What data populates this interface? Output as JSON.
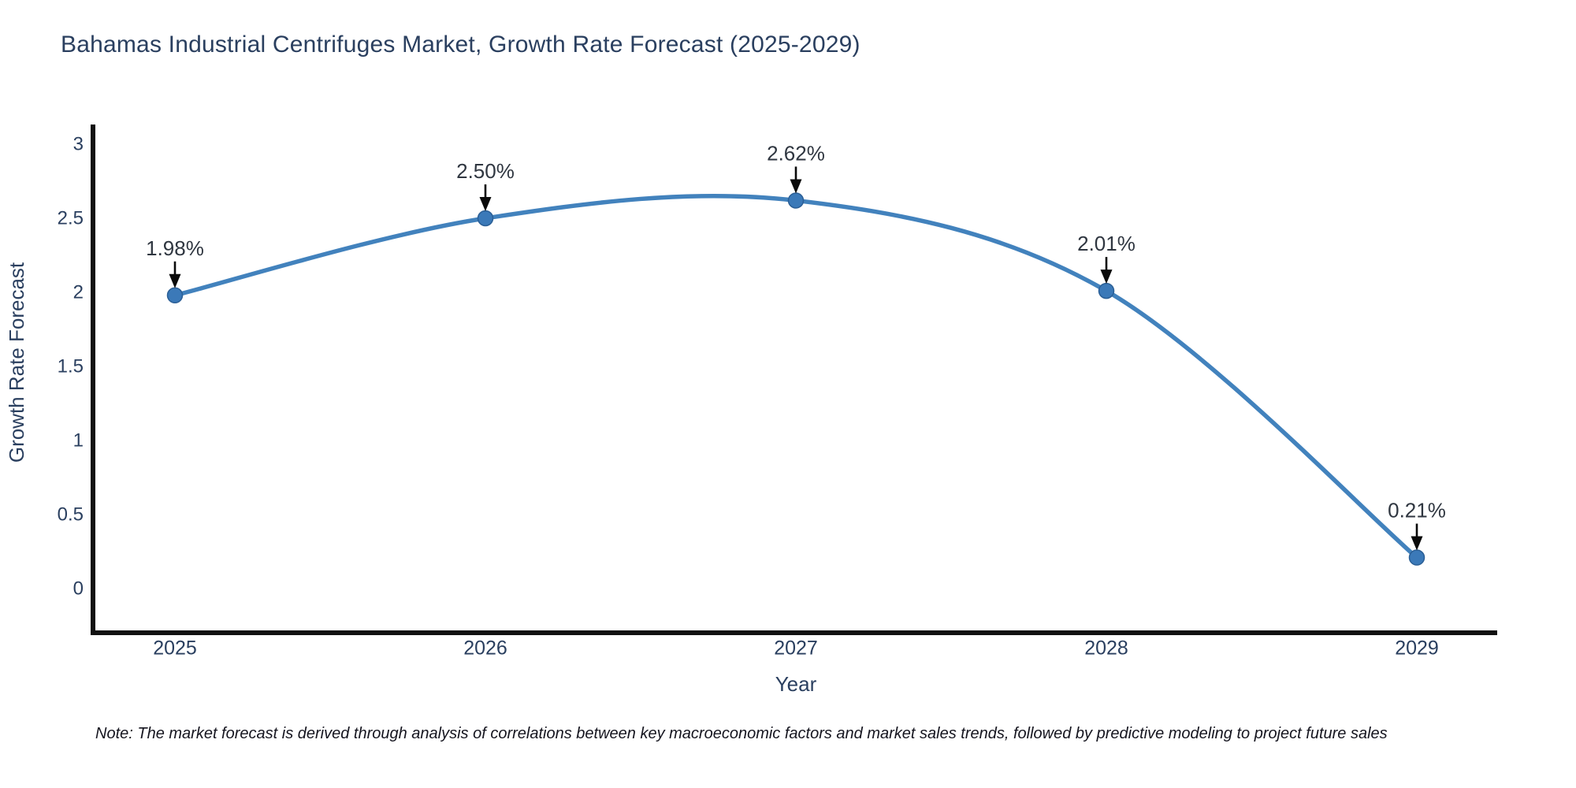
{
  "title": "Bahamas Industrial Centrifuges Market, Growth Rate Forecast (2025-2029)",
  "note": "Note: The market forecast is derived through analysis of correlations between key macroeconomic factors and market sales trends, followed by predictive modeling to project future sales",
  "chart_data": {
    "type": "line",
    "title": "Bahamas Industrial Centrifuges Market, Growth Rate Forecast (2025-2029)",
    "x": [
      "2025",
      "2026",
      "2027",
      "2028",
      "2029"
    ],
    "values": [
      1.98,
      2.5,
      2.62,
      2.01,
      0.21
    ],
    "point_labels": [
      "1.98%",
      "2.50%",
      "2.62%",
      "2.01%",
      "0.21%"
    ],
    "xlabel": "Year",
    "ylabel": "Growth Rate Forecast",
    "ylim": [
      -0.32,
      3.15
    ],
    "yticks": [
      {
        "v": 0,
        "label": "0"
      },
      {
        "v": 0.5,
        "label": "0.5"
      },
      {
        "v": 1,
        "label": "1"
      },
      {
        "v": 1.5,
        "label": "1.5"
      },
      {
        "v": 2,
        "label": "2"
      },
      {
        "v": 2.5,
        "label": "2.5"
      },
      {
        "v": 3,
        "label": "3"
      }
    ],
    "grid": false,
    "legend": "none",
    "line_style": "smooth-spline",
    "colors": {
      "line": "#4282bd",
      "marker": "#3b79b8",
      "marker_edge": "#2b5f96",
      "axis": "#111111",
      "tick_text": "#2a3f5f",
      "annotation_text": "#2f3640",
      "arrow": "#0a0a0a"
    }
  }
}
